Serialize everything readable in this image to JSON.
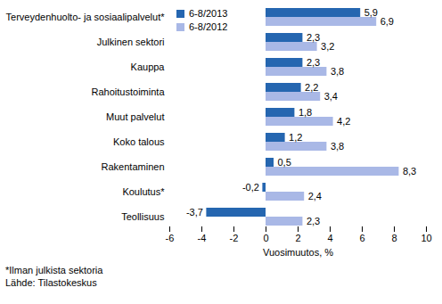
{
  "chart_data": {
    "type": "bar",
    "orientation": "horizontal",
    "categories": [
      "Terveydenhuolto- ja sosiaalipalvelut*",
      "Julkinen sektori",
      "Kauppa",
      "Rahoitustoiminta",
      "Muut palvelut",
      "Koko talous",
      "Rakentaminen",
      "Koulutus*",
      "Teollisuus"
    ],
    "series": [
      {
        "name": "6-8/2013",
        "color": "#2566b0",
        "values": [
          5.9,
          2.3,
          2.3,
          2.2,
          1.8,
          1.2,
          0.5,
          -0.2,
          -3.7
        ],
        "value_labels": [
          "5,9",
          "2,3",
          "2,3",
          "2,2",
          "1,8",
          "1,2",
          "0,5",
          "-0,2",
          "-3,7"
        ]
      },
      {
        "name": "6-8/2012",
        "color": "#a9b8e6",
        "values": [
          6.9,
          3.2,
          3.8,
          3.4,
          4.2,
          3.8,
          8.3,
          2.4,
          2.3
        ],
        "value_labels": [
          "6,9",
          "3,2",
          "3,8",
          "3,4",
          "4,2",
          "3,8",
          "8,3",
          "2,4",
          "2,3"
        ]
      }
    ],
    "x_label": "Vuosimuutos, %",
    "xlim": [
      -6,
      10
    ],
    "xticks": [
      -6,
      -4,
      -2,
      0,
      2,
      4,
      6,
      8,
      10
    ],
    "grid": false,
    "legend": "top-left",
    "data_labels": true,
    "annotations": [
      "*Ilman julkista sektoria",
      "Lähde: Tilastokeskus"
    ]
  }
}
